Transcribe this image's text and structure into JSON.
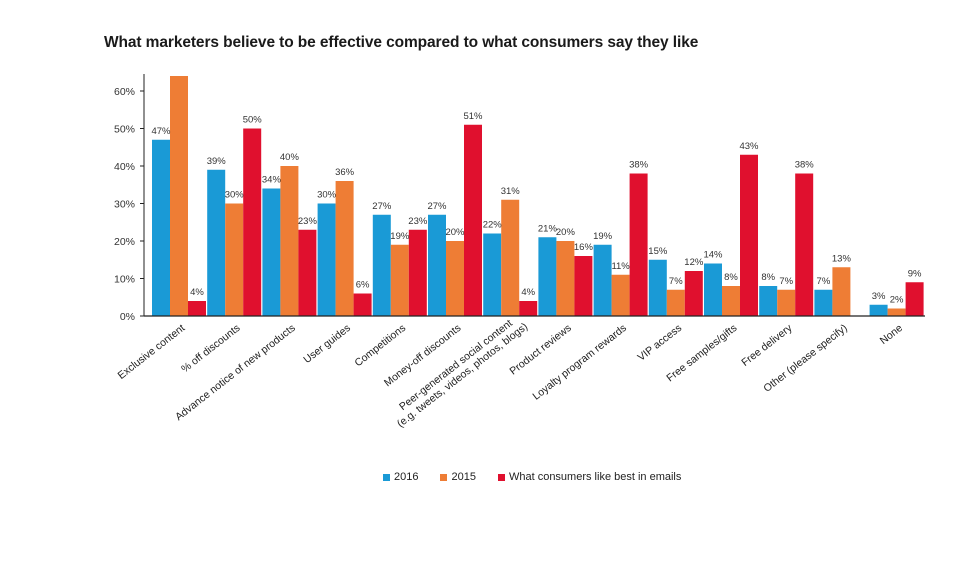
{
  "chart_data": {
    "type": "bar",
    "title": "What marketers believe to be effective compared to what consumers say they like",
    "xlabel": "",
    "ylabel": "",
    "ylim": [
      0,
      60
    ],
    "yticks": [
      "0%",
      "10%",
      "20%",
      "30%",
      "40%",
      "50%",
      "60%"
    ],
    "ytick_values": [
      0,
      10,
      20,
      30,
      40,
      50,
      60
    ],
    "grid": false,
    "legend_position": "bottom-center",
    "categories": [
      [
        "Exclusive content"
      ],
      [
        "% off discounts"
      ],
      [
        "Advance notice of new products"
      ],
      [
        "User guides"
      ],
      [
        "Competitions"
      ],
      [
        "Money-off discounts"
      ],
      [
        "Peer-generated social content",
        "(e.g. tweets, videos, photos, blogs)"
      ],
      [
        "Product reviews"
      ],
      [
        "Loyalty program rewards"
      ],
      [
        "VIP access"
      ],
      [
        "Free samples/gifts"
      ],
      [
        "Free delivery"
      ],
      [
        "Other (please specify)"
      ],
      [
        "None"
      ]
    ],
    "series": [
      {
        "name": "2016",
        "color": "#1a9ad6",
        "values": [
          47,
          39,
          34,
          30,
          27,
          27,
          22,
          21,
          19,
          15,
          14,
          8,
          7,
          3
        ],
        "labels": [
          "47%",
          "39%",
          "34%",
          "30%",
          "27%",
          "27%",
          "22%",
          "21%",
          "19%",
          "15%",
          "14%",
          "8%",
          "7%",
          "3%"
        ]
      },
      {
        "name": "2015",
        "color": "#ee7d35",
        "values": [
          64,
          30,
          40,
          36,
          19,
          20,
          31,
          20,
          11,
          7,
          8,
          7,
          13,
          2
        ],
        "labels": [
          "",
          "30%",
          "40%",
          "36%",
          "19%",
          "20%",
          "31%",
          "20%",
          "11%",
          "7%",
          "8%",
          "7%",
          "13%",
          "2%"
        ]
      },
      {
        "name": "What consumers like best in emails",
        "color": "#e0102e",
        "values": [
          4,
          50,
          23,
          6,
          23,
          51,
          4,
          16,
          38,
          12,
          43,
          38,
          null,
          9
        ],
        "labels": [
          "4%",
          "50%",
          "23%",
          "6%",
          "23%",
          "51%",
          "4%",
          "16%",
          "38%",
          "12%",
          "43%",
          "38%",
          "",
          "9%"
        ]
      }
    ]
  }
}
